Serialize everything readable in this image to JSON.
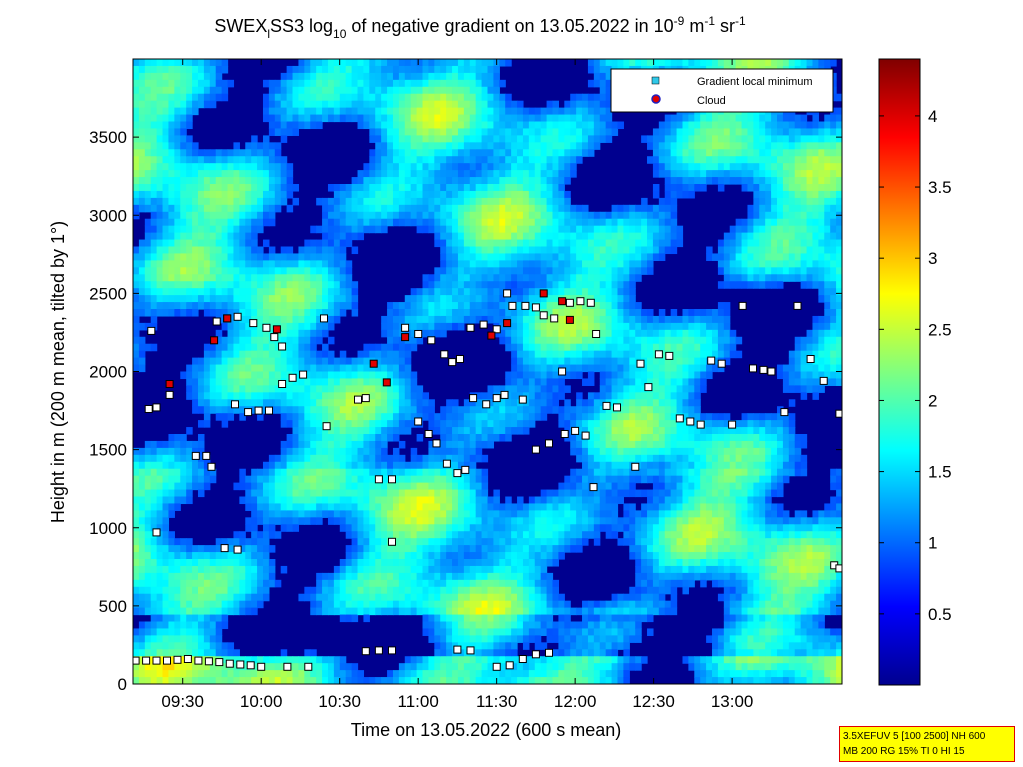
{
  "chart_data": {
    "type": "heatmap",
    "title": {
      "prefix": "SWEX",
      "prefix_sub": "l",
      "main1": "SS3 log",
      "main1_sub": "10",
      "main2": " of negative gradient on 13.05.2022 in 10",
      "exp1": "-9",
      "unit1": " m",
      "exp2": "-1",
      "unit2": " sr",
      "exp3": "-1"
    },
    "xlabel": "Time on 13.05.2022 (600 s mean)",
    "ylabel": "Height in m (200 m mean, tilted by 1°)",
    "x_ticks": [
      "09:30",
      "10:00",
      "10:30",
      "11:00",
      "11:30",
      "12:00",
      "12:30",
      "13:00"
    ],
    "x_tick_minutes": [
      570,
      600,
      630,
      660,
      690,
      720,
      750,
      780
    ],
    "xlim_minutes": [
      551,
      822
    ],
    "y_ticks": [
      0,
      500,
      1000,
      1500,
      2000,
      2500,
      3000,
      3500
    ],
    "ylim": [
      0,
      4000
    ],
    "colorbar": {
      "ticks": [
        "0.5",
        "1",
        "1.5",
        "2",
        "2.5",
        "3",
        "3.5",
        "4"
      ],
      "tick_values": [
        0.5,
        1,
        1.5,
        2,
        2.5,
        3,
        3.5,
        4
      ],
      "range": [
        0,
        4.4
      ],
      "colormap": "jet"
    },
    "legend": {
      "placement": "top-right",
      "entries": [
        {
          "label": "Gradient local minimum",
          "marker": "square",
          "color": "#30c8e8"
        },
        {
          "label": "Cloud",
          "marker": "circle",
          "color": "#e00000",
          "edge": "#2020c0"
        }
      ]
    },
    "gradient_minima": [
      {
        "x": 552,
        "y": 150
      },
      {
        "x": 556,
        "y": 150
      },
      {
        "x": 560,
        "y": 150
      },
      {
        "x": 564,
        "y": 150
      },
      {
        "x": 568,
        "y": 155
      },
      {
        "x": 572,
        "y": 160
      },
      {
        "x": 576,
        "y": 150
      },
      {
        "x": 580,
        "y": 145
      },
      {
        "x": 584,
        "y": 140
      },
      {
        "x": 588,
        "y": 130
      },
      {
        "x": 592,
        "y": 125
      },
      {
        "x": 596,
        "y": 120
      },
      {
        "x": 600,
        "y": 110
      },
      {
        "x": 610,
        "y": 110
      },
      {
        "x": 618,
        "y": 110
      },
      {
        "x": 640,
        "y": 210
      },
      {
        "x": 645,
        "y": 215
      },
      {
        "x": 650,
        "y": 215
      },
      {
        "x": 675,
        "y": 220
      },
      {
        "x": 680,
        "y": 215
      },
      {
        "x": 690,
        "y": 110
      },
      {
        "x": 695,
        "y": 120
      },
      {
        "x": 700,
        "y": 160
      },
      {
        "x": 705,
        "y": 190
      },
      {
        "x": 710,
        "y": 200
      },
      {
        "x": 560,
        "y": 970
      },
      {
        "x": 586,
        "y": 870
      },
      {
        "x": 591,
        "y": 860
      },
      {
        "x": 650,
        "y": 910
      },
      {
        "x": 557,
        "y": 1760
      },
      {
        "x": 560,
        "y": 1770
      },
      {
        "x": 565,
        "y": 1850
      },
      {
        "x": 575,
        "y": 1460
      },
      {
        "x": 579,
        "y": 1460
      },
      {
        "x": 581,
        "y": 1390
      },
      {
        "x": 590,
        "y": 1790
      },
      {
        "x": 595,
        "y": 1740
      },
      {
        "x": 599,
        "y": 1750
      },
      {
        "x": 603,
        "y": 1750
      },
      {
        "x": 608,
        "y": 1920
      },
      {
        "x": 612,
        "y": 1960
      },
      {
        "x": 616,
        "y": 1980
      },
      {
        "x": 625,
        "y": 1650
      },
      {
        "x": 637,
        "y": 1820
      },
      {
        "x": 640,
        "y": 1830
      },
      {
        "x": 645,
        "y": 1310
      },
      {
        "x": 650,
        "y": 1310
      },
      {
        "x": 558,
        "y": 2260
      },
      {
        "x": 583,
        "y": 2320
      },
      {
        "x": 587,
        "y": 2340
      },
      {
        "x": 591,
        "y": 2350
      },
      {
        "x": 597,
        "y": 2310
      },
      {
        "x": 602,
        "y": 2280
      },
      {
        "x": 605,
        "y": 2220
      },
      {
        "x": 608,
        "y": 2160
      },
      {
        "x": 624,
        "y": 2340
      },
      {
        "x": 655,
        "y": 2280
      },
      {
        "x": 660,
        "y": 2240
      },
      {
        "x": 665,
        "y": 2200
      },
      {
        "x": 670,
        "y": 2110
      },
      {
        "x": 673,
        "y": 2060
      },
      {
        "x": 676,
        "y": 2080
      },
      {
        "x": 680,
        "y": 2280
      },
      {
        "x": 685,
        "y": 2300
      },
      {
        "x": 690,
        "y": 2270
      },
      {
        "x": 694,
        "y": 2500
      },
      {
        "x": 696,
        "y": 2420
      },
      {
        "x": 701,
        "y": 2420
      },
      {
        "x": 705,
        "y": 2410
      },
      {
        "x": 708,
        "y": 2360
      },
      {
        "x": 712,
        "y": 2340
      },
      {
        "x": 715,
        "y": 2000
      },
      {
        "x": 660,
        "y": 1680
      },
      {
        "x": 664,
        "y": 1600
      },
      {
        "x": 667,
        "y": 1540
      },
      {
        "x": 671,
        "y": 1410
      },
      {
        "x": 675,
        "y": 1350
      },
      {
        "x": 678,
        "y": 1370
      },
      {
        "x": 681,
        "y": 1830
      },
      {
        "x": 686,
        "y": 1790
      },
      {
        "x": 690,
        "y": 1830
      },
      {
        "x": 693,
        "y": 1850
      },
      {
        "x": 700,
        "y": 1820
      },
      {
        "x": 705,
        "y": 1500
      },
      {
        "x": 710,
        "y": 1540
      },
      {
        "x": 716,
        "y": 1600
      },
      {
        "x": 720,
        "y": 1620
      },
      {
        "x": 724,
        "y": 1590
      },
      {
        "x": 727,
        "y": 1260
      },
      {
        "x": 718,
        "y": 2440
      },
      {
        "x": 722,
        "y": 2450
      },
      {
        "x": 726,
        "y": 2440
      },
      {
        "x": 728,
        "y": 2240
      },
      {
        "x": 732,
        "y": 1780
      },
      {
        "x": 736,
        "y": 1770
      },
      {
        "x": 743,
        "y": 1390
      },
      {
        "x": 745,
        "y": 2050
      },
      {
        "x": 748,
        "y": 1900
      },
      {
        "x": 752,
        "y": 2110
      },
      {
        "x": 756,
        "y": 2100
      },
      {
        "x": 760,
        "y": 1700
      },
      {
        "x": 764,
        "y": 1680
      },
      {
        "x": 768,
        "y": 1660
      },
      {
        "x": 772,
        "y": 2070
      },
      {
        "x": 776,
        "y": 2050
      },
      {
        "x": 780,
        "y": 1660
      },
      {
        "x": 784,
        "y": 2420
      },
      {
        "x": 788,
        "y": 2020
      },
      {
        "x": 792,
        "y": 2010
      },
      {
        "x": 795,
        "y": 2000
      },
      {
        "x": 800,
        "y": 1740
      },
      {
        "x": 805,
        "y": 2420
      },
      {
        "x": 810,
        "y": 2080
      },
      {
        "x": 815,
        "y": 1940
      },
      {
        "x": 819,
        "y": 760
      },
      {
        "x": 821,
        "y": 740
      },
      {
        "x": 821,
        "y": 1730
      }
    ],
    "clouds": [
      {
        "x": 565,
        "y": 1920
      },
      {
        "x": 582,
        "y": 2200
      },
      {
        "x": 587,
        "y": 2340
      },
      {
        "x": 606,
        "y": 2270
      },
      {
        "x": 643,
        "y": 2050
      },
      {
        "x": 648,
        "y": 1930
      },
      {
        "x": 655,
        "y": 2220
      },
      {
        "x": 688,
        "y": 2230
      },
      {
        "x": 694,
        "y": 2310
      },
      {
        "x": 708,
        "y": 2500
      },
      {
        "x": 715,
        "y": 2450
      },
      {
        "x": 718,
        "y": 2330
      }
    ]
  },
  "info_box": {
    "line1": "3.5XEFUV 5 [100 2500] NH 600",
    "line2": "MB 200 RG 15% TI 0 HI 15"
  },
  "colors": {
    "axis": "#000000",
    "background": "#ffffff",
    "info_box_bg": "#ffff00",
    "info_box_border": "#e00000"
  }
}
